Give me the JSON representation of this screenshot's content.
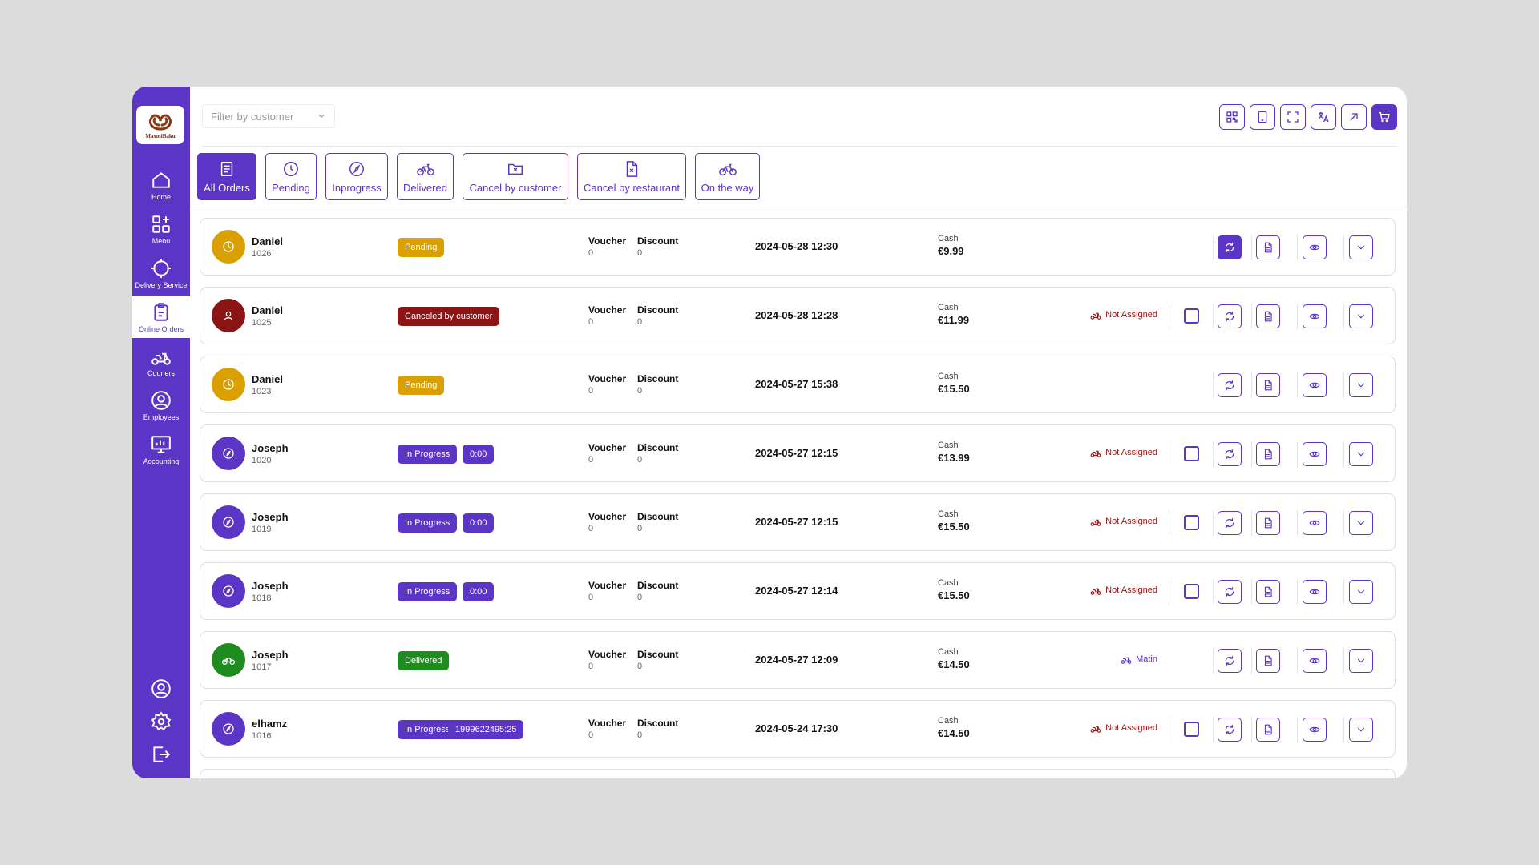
{
  "brand": {
    "logo_text": "MaxmiBaku",
    "accent": "#5b35c6"
  },
  "sidebar": {
    "items": [
      {
        "label": "Home",
        "icon": "home-icon"
      },
      {
        "label": "Menu",
        "icon": "grid-plus-icon"
      },
      {
        "label": "Delivery Service",
        "icon": "crosshair-icon"
      },
      {
        "label": "Online Orders",
        "icon": "clipboard-icon",
        "active": true
      },
      {
        "label": "Couriers",
        "icon": "scooter-icon"
      },
      {
        "label": "Employees",
        "icon": "user-circle-icon"
      },
      {
        "label": "Accounting",
        "icon": "monitor-icon"
      }
    ],
    "bottom": [
      "profile-icon",
      "settings-icon",
      "logout-icon"
    ]
  },
  "filter": {
    "placeholder": "Filter by customer"
  },
  "top_icons": [
    "qr-icon",
    "tablet-icon",
    "fullscreen-icon",
    "translate-icon",
    "external-link-icon",
    "cart-icon"
  ],
  "tabs": [
    {
      "label": "All Orders",
      "icon": "document-icon",
      "active": true
    },
    {
      "label": "Pending",
      "icon": "clock-icon"
    },
    {
      "label": "Inprogress",
      "icon": "compass-icon"
    },
    {
      "label": "Delivered",
      "icon": "bicycle-icon"
    },
    {
      "label": "Cancel by customer",
      "icon": "folder-x-icon"
    },
    {
      "label": "Cancel by restaurant",
      "icon": "file-x-icon"
    },
    {
      "label": "On the way",
      "icon": "bicycle-icon"
    }
  ],
  "columns": {
    "voucher": "Voucher",
    "discount": "Discount"
  },
  "status_colors": {
    "Pending": "#d9a000",
    "Canceled by customer": "#8b1414",
    "In Progress": "#5b35c6",
    "Delivered": "#1f8c1f"
  },
  "orders": [
    {
      "name": "Daniel",
      "id": "1026",
      "status": "Pending",
      "timer": "",
      "voucher": "0",
      "discount": "0",
      "date": "2024-05-28 12:30",
      "payment": "Cash",
      "amount": "€9.99",
      "assign": "",
      "checkbox": false,
      "refresh_filled": true
    },
    {
      "name": "Daniel",
      "id": "1025",
      "status": "Canceled by customer",
      "timer": "",
      "voucher": "0",
      "discount": "0",
      "date": "2024-05-28 12:28",
      "payment": "Cash",
      "amount": "€11.99",
      "assign": "Not Assigned",
      "checkbox": true,
      "refresh_filled": false
    },
    {
      "name": "Daniel",
      "id": "1023",
      "status": "Pending",
      "timer": "",
      "voucher": "0",
      "discount": "0",
      "date": "2024-05-27 15:38",
      "payment": "Cash",
      "amount": "€15.50",
      "assign": "",
      "checkbox": false,
      "refresh_filled": false
    },
    {
      "name": "Joseph",
      "id": "1020",
      "status": "In Progress",
      "timer": "0:00",
      "voucher": "0",
      "discount": "0",
      "date": "2024-05-27 12:15",
      "payment": "Cash",
      "amount": "€13.99",
      "assign": "Not Assigned",
      "checkbox": true,
      "refresh_filled": false
    },
    {
      "name": "Joseph",
      "id": "1019",
      "status": "In Progress",
      "timer": "0:00",
      "voucher": "0",
      "discount": "0",
      "date": "2024-05-27 12:15",
      "payment": "Cash",
      "amount": "€15.50",
      "assign": "Not Assigned",
      "checkbox": true,
      "refresh_filled": false
    },
    {
      "name": "Joseph",
      "id": "1018",
      "status": "In Progress",
      "timer": "0:00",
      "voucher": "0",
      "discount": "0",
      "date": "2024-05-27 12:14",
      "payment": "Cash",
      "amount": "€15.50",
      "assign": "Not Assigned",
      "checkbox": true,
      "refresh_filled": false
    },
    {
      "name": "Joseph",
      "id": "1017",
      "status": "Delivered",
      "timer": "",
      "voucher": "0",
      "discount": "0",
      "date": "2024-05-27 12:09",
      "payment": "Cash",
      "amount": "€14.50",
      "assign": "Matin",
      "checkbox": false,
      "refresh_filled": false
    },
    {
      "name": "elhamz",
      "id": "1016",
      "status": "In Progress",
      "timer": "1999622495:25",
      "voucher": "0",
      "discount": "0",
      "date": "2024-05-24 17:30",
      "payment": "Cash",
      "amount": "€14.50",
      "assign": "Not Assigned",
      "checkbox": true,
      "refresh_filled": false
    }
  ]
}
